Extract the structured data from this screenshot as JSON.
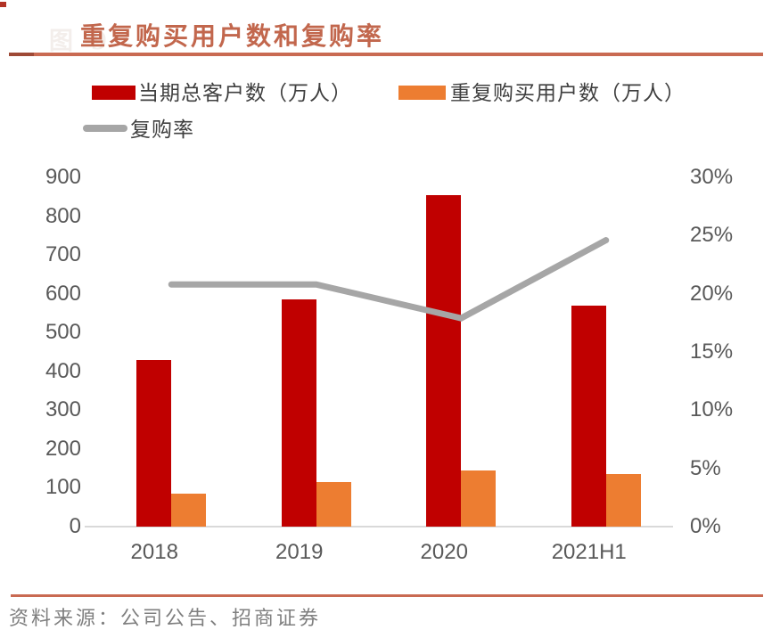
{
  "header": {
    "figure_ghost": "图 9",
    "title": "重复购买用户数和复购率"
  },
  "legend": [
    {
      "label": "当期总客户数（万人）",
      "color": "#c00000",
      "swatch": "box"
    },
    {
      "label": "重复购买用户数（万人）",
      "color": "#ed7d31",
      "swatch": "box"
    },
    {
      "label": "复购率",
      "color": "#a6a6a6",
      "swatch": "line"
    }
  ],
  "chart_data": {
    "type": "bar",
    "title": "重复购买用户数和复购率",
    "categories": [
      "2018",
      "2019",
      "2020",
      "2021H1"
    ],
    "series": [
      {
        "name": "当期总客户数（万人）",
        "type": "bar",
        "axis": "left",
        "color": "#c00000",
        "values": [
          430,
          585,
          855,
          570
        ]
      },
      {
        "name": "重复购买用户数（万人）",
        "type": "bar",
        "axis": "left",
        "color": "#ed7d31",
        "values": [
          85,
          115,
          145,
          135
        ]
      },
      {
        "name": "复购率",
        "type": "line",
        "axis": "right",
        "color": "#a6a6a6",
        "values": [
          20.8,
          20.8,
          17.9,
          24.6
        ]
      }
    ],
    "left_axis": {
      "min": 0,
      "max": 900,
      "step": 100
    },
    "right_axis": {
      "min": 0,
      "max": 30,
      "step": 5,
      "suffix": "%"
    },
    "grid": false,
    "legend_position": "top"
  },
  "footer": {
    "source": "资料来源：公司公告、招商证券"
  },
  "colors": {
    "bar_primary": "#c00000",
    "bar_secondary": "#ed7d31",
    "line_rate": "#a6a6a6",
    "title_text": "#c2674d",
    "accent_rule": "#c96a52",
    "accent_rule_dark": "#9e4936",
    "axis_text": "#595959",
    "legend_text": "#3f3f3f",
    "source_text": "#7f7f7f",
    "baseline": "#d9d9d9",
    "corner_mark": "#b23226",
    "ghost_text": "#f3eeeb"
  }
}
